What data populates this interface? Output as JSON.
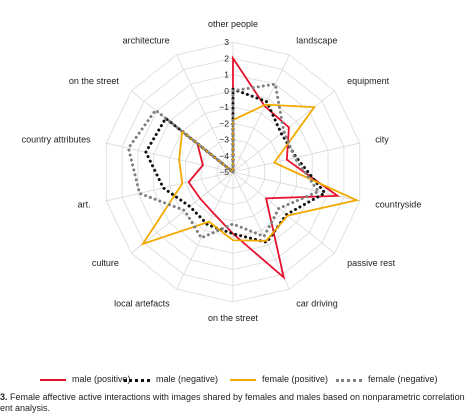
{
  "chart_data": {
    "type": "radar",
    "axes": [
      "other people",
      "landscape",
      "equipment",
      "city",
      "countryside",
      "passive rest",
      "car driving",
      "on the street",
      "local artefacts",
      "culture",
      "art.",
      "country attributes",
      "on the street",
      "architecture"
    ],
    "rlim": [
      -5,
      3
    ],
    "ticks": [
      "3",
      "2",
      "1",
      "0",
      "−1",
      "−2",
      "−3",
      "−4",
      "−5"
    ],
    "series": [
      {
        "name": "male (positive)",
        "color": "#e8112d",
        "style": "solid",
        "values": [
          2,
          -0.5,
          -0.6,
          -1.6,
          1.6,
          -2.4,
          2.2,
          -1.2,
          -2.2,
          -2.4,
          -2.2,
          -3.1,
          -2.2,
          -5
        ]
      },
      {
        "name": "male (negative)",
        "color": "#111111",
        "style": "dotted",
        "values": [
          0.1,
          -0.2,
          -1.2,
          -1.0,
          0.8,
          -0.8,
          -0.2,
          -1.2,
          -1.4,
          -1.6,
          -0.6,
          0.5,
          0.3,
          -5
        ]
      },
      {
        "name": "female (positive)",
        "color": "#f2a900",
        "style": "solid",
        "values": [
          -1.8,
          -0.4,
          1.4,
          -2.4,
          2.8,
          -0.7,
          -0.3,
          -0.8,
          -1.6,
          2.1,
          -1.8,
          -1.6,
          -1.0,
          -5
        ]
      },
      {
        "name": "female (negative)",
        "color": "#808080",
        "style": "dotted",
        "values": [
          0,
          1.0,
          -1.0,
          -1.1,
          0.4,
          -1.4,
          -0.6,
          -1.8,
          -0.5,
          -1.2,
          0.9,
          1.6,
          1.1,
          -5
        ]
      }
    ]
  },
  "caption": {
    "num": "3.",
    "line1": "Female affective active interactions with images shared by females and males based on nonparametric correlation",
    "line2": "ent analysis."
  }
}
